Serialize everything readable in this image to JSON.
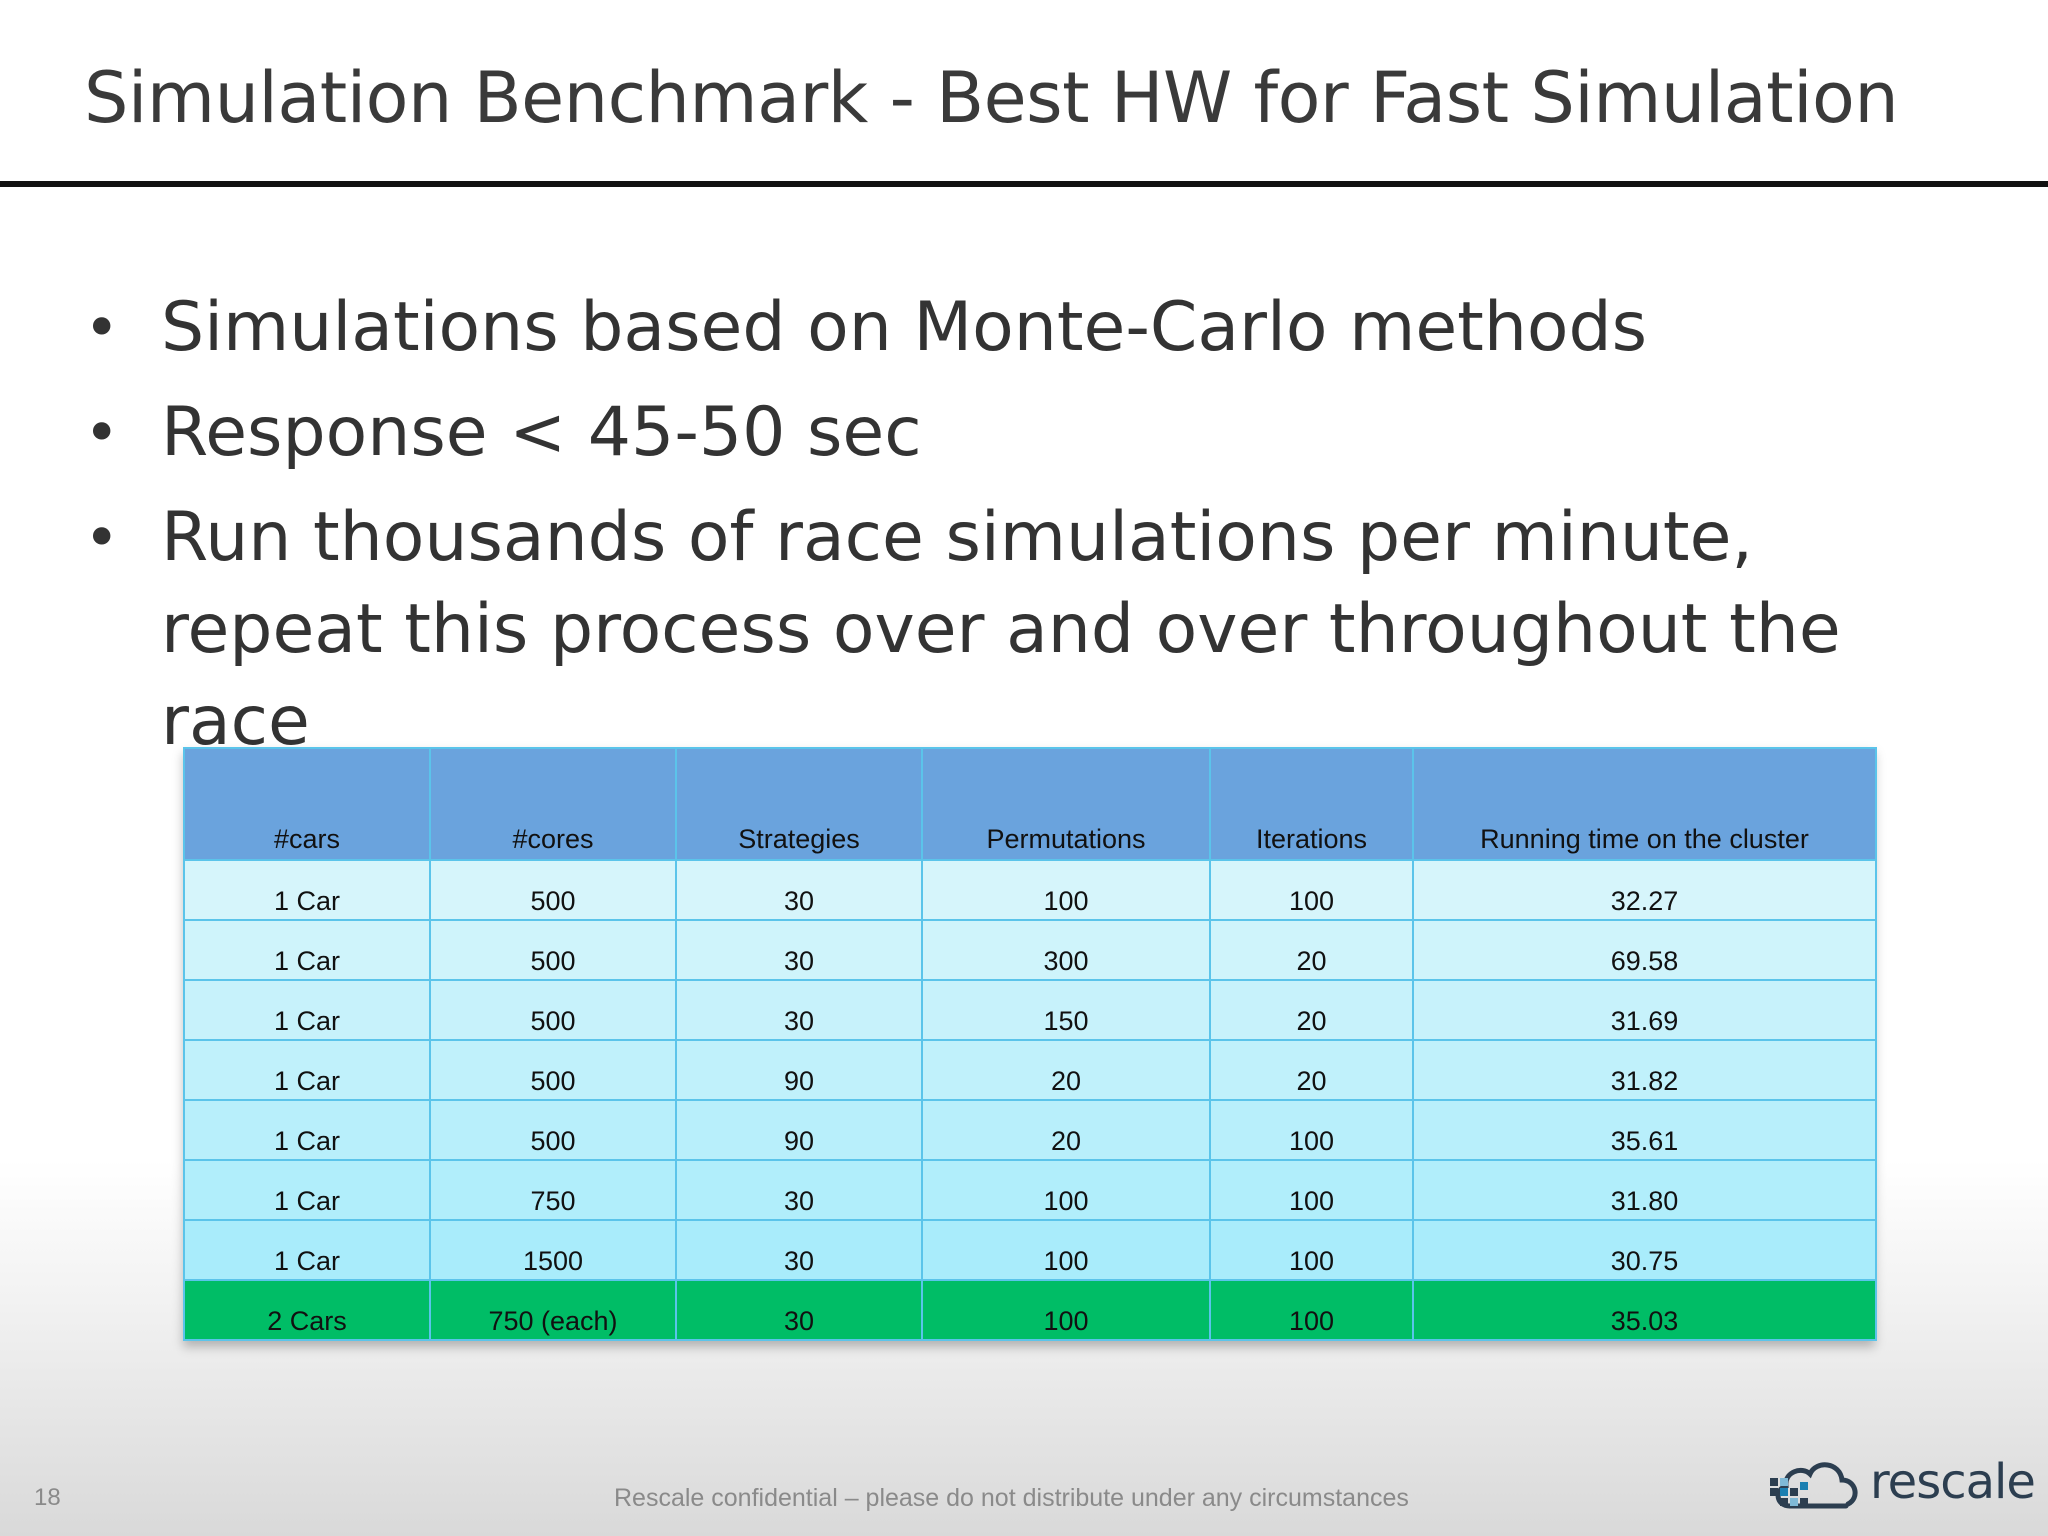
{
  "slide": {
    "title": "Simulation Benchmark - Best HW for Fast Simulation",
    "bullets": [
      "Simulations based on Monte-Carlo methods",
      "Response < 45-50 sec",
      "Run thousands of race simulations per minute, repeat this process over and over throughout the race"
    ],
    "bullet_symbol": "•"
  },
  "table": {
    "headers": [
      "#cars",
      "#cores",
      "Strategies",
      "Permutations",
      "Iterations",
      "Running time on the cluster"
    ],
    "rows": [
      [
        "1 Car",
        "500",
        "30",
        "100",
        "100",
        "32.27"
      ],
      [
        "1 Car",
        "500",
        "30",
        "300",
        "20",
        "69.58"
      ],
      [
        "1 Car",
        "500",
        "30",
        "150",
        "20",
        "31.69"
      ],
      [
        "1 Car",
        "500",
        "90",
        "20",
        "20",
        "31.82"
      ],
      [
        "1 Car",
        "500",
        "90",
        "20",
        "100",
        "35.61"
      ],
      [
        "1 Car",
        "750",
        "30",
        "100",
        "100",
        "31.80"
      ],
      [
        "1 Car",
        "1500",
        "30",
        "100",
        "100",
        "30.75"
      ],
      [
        "2 Cars",
        "750 (each)",
        "30",
        "100",
        "100",
        "35.03"
      ]
    ],
    "highlighted_row": 7,
    "colors": {
      "header_bg": "#6aa3dd",
      "row_bg_start": "#d6f5fb",
      "row_bg_end": "#a9ecfb",
      "highlight_bg": "#00bd66",
      "border": "#5bc4ea"
    }
  },
  "footer": {
    "page_number": "18",
    "confidential": "Rescale confidential – please do not distribute under any circumstances",
    "logo_text": "rescale"
  }
}
